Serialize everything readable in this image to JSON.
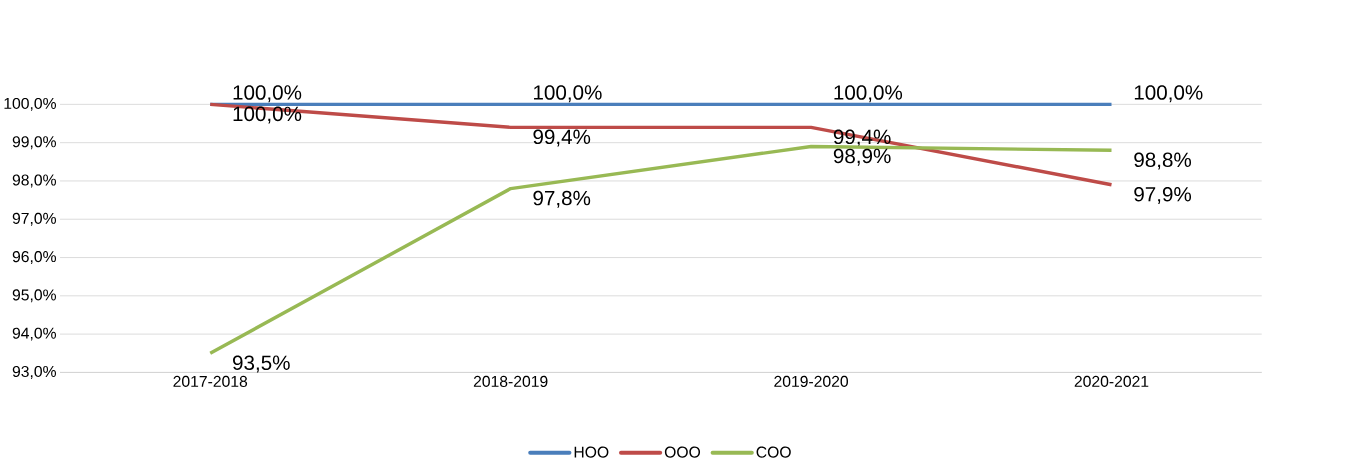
{
  "chart_data": {
    "type": "line",
    "categories": [
      "2017-2018",
      "2018-2019",
      "2019-2020",
      "2020-2021"
    ],
    "series": [
      {
        "name": "HOO",
        "color": "#4a7ebb",
        "values": [
          100.0,
          100.0,
          100.0,
          100.0
        ],
        "value_labels": [
          "100,0%",
          "100,0%",
          "100,0%",
          "100,0%"
        ]
      },
      {
        "name": "OOO",
        "color": "#be4b48",
        "values": [
          100.0,
          99.4,
          99.4,
          97.9
        ],
        "value_labels": [
          "100,0%",
          "99,4%",
          "99,4%",
          "97,9%"
        ]
      },
      {
        "name": "COO",
        "color": "#98b954",
        "values": [
          93.5,
          97.8,
          98.9,
          98.8
        ],
        "value_labels": [
          "93,5%",
          "97,8%",
          "98,9%",
          "98,8%"
        ]
      }
    ],
    "ylim": [
      93,
      100
    ],
    "yticks": [
      {
        "value": 93,
        "label": "93,0%"
      },
      {
        "value": 94,
        "label": "94,0%"
      },
      {
        "value": 95,
        "label": "95,0%"
      },
      {
        "value": 96,
        "label": "96,0%"
      },
      {
        "value": 97,
        "label": "97,0%"
      },
      {
        "value": 98,
        "label": "98,0%"
      },
      {
        "value": 99,
        "label": "99,0%"
      },
      {
        "value": 100,
        "label": "100,0%"
      }
    ],
    "grid": "y",
    "legend": "bottom",
    "marker": "none",
    "line_style": "solid"
  }
}
